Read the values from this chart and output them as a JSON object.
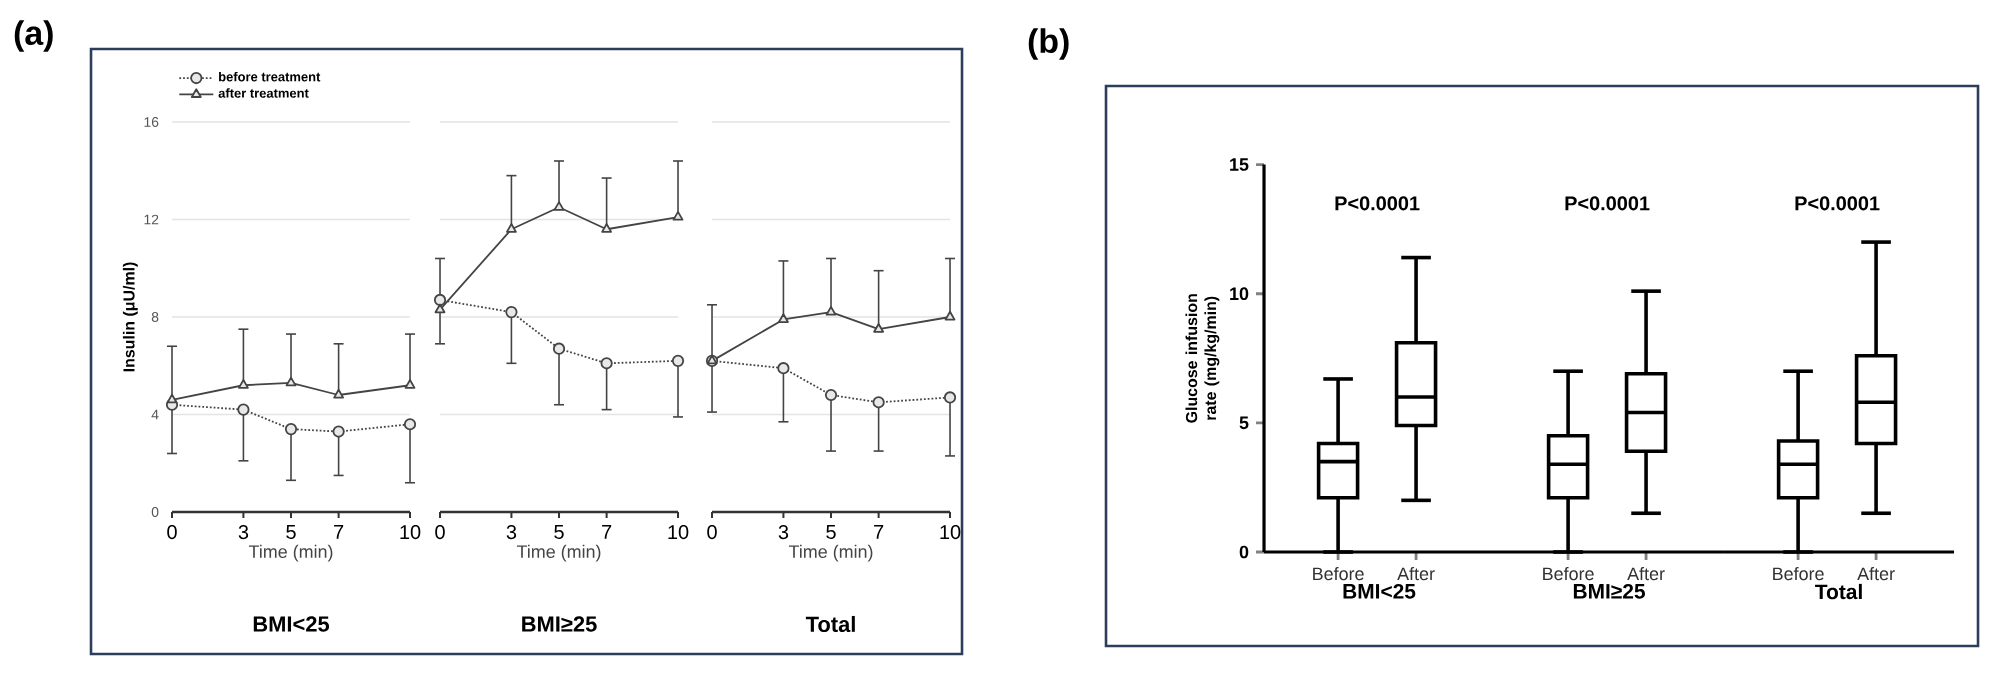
{
  "chart_data": [
    {
      "type": "line",
      "title": "(a)",
      "subtitle": "BMI<25",
      "xlabel": "Time (min)",
      "ylabel": "Insulin (μU/ml)",
      "x": [
        0,
        3,
        5,
        7,
        10
      ],
      "xlim": [
        0,
        10
      ],
      "xticks": [
        0,
        3,
        5,
        7,
        10
      ],
      "ylim": [
        0,
        16
      ],
      "yticks": [
        0,
        4,
        8,
        12,
        16
      ],
      "grid": "y",
      "legend": "top left",
      "series": [
        {
          "name": "before treatment",
          "color": "#444444",
          "marker": "circle",
          "line_style": "dotted",
          "values": [
            4.4,
            4.2,
            3.4,
            3.3,
            3.6
          ],
          "errors": [
            [
              2.4,
              4.4
            ],
            [
              2.1,
              4.2
            ],
            [
              1.3,
              3.4
            ],
            [
              1.5,
              3.3
            ],
            [
              1.2,
              3.6
            ]
          ]
        },
        {
          "name": "after treatment",
          "color": "#444444",
          "marker": "triangle",
          "line_style": "solid",
          "values": [
            4.6,
            5.2,
            5.3,
            4.8,
            5.2
          ],
          "errors": [
            [
              4.6,
              6.8
            ],
            [
              5.2,
              7.5
            ],
            [
              5.3,
              7.3
            ],
            [
              4.8,
              6.9
            ],
            [
              5.2,
              7.3
            ]
          ]
        }
      ]
    },
    {
      "type": "line",
      "subtitle": "BMI≥25",
      "xlabel": "Time (min)",
      "x": [
        0,
        3,
        5,
        7,
        10
      ],
      "xlim": [
        0,
        10
      ],
      "xticks": [
        0,
        3,
        5,
        7,
        10
      ],
      "ylim": [
        0,
        16
      ],
      "yticks": [
        0,
        4,
        8,
        12,
        16
      ],
      "grid": "y",
      "tick_labels": "x",
      "series": [
        {
          "color": "#444444",
          "marker": "circle",
          "line_style": "dotted",
          "values": [
            8.7,
            8.2,
            6.7,
            6.1,
            6.2
          ],
          "errors": [
            [
              6.9,
              8.7
            ],
            [
              6.1,
              8.2
            ],
            [
              4.4,
              6.7
            ],
            [
              4.2,
              6.1
            ],
            [
              3.9,
              6.2
            ]
          ]
        },
        {
          "color": "#444444",
          "marker": "triangle",
          "line_style": "solid",
          "values": [
            8.3,
            11.6,
            12.5,
            11.6,
            12.1
          ],
          "errors": [
            [
              8.3,
              10.4
            ],
            [
              11.6,
              13.8
            ],
            [
              12.5,
              14.4
            ],
            [
              11.6,
              13.7
            ],
            [
              12.1,
              14.4
            ]
          ]
        }
      ]
    },
    {
      "type": "line",
      "subtitle": "Total",
      "xlabel": "Time (min)",
      "x": [
        0,
        3,
        5,
        7,
        10
      ],
      "xlim": [
        0,
        10
      ],
      "xticks": [
        0,
        3,
        5,
        7,
        10
      ],
      "ylim": [
        0,
        16
      ],
      "yticks": [
        0,
        4,
        8,
        12,
        16
      ],
      "grid": "y",
      "tick_labels": "x",
      "series": [
        {
          "color": "#444444",
          "marker": "circle",
          "line_style": "dotted",
          "values": [
            6.2,
            5.9,
            4.8,
            4.5,
            4.7
          ],
          "errors": [
            [
              4.1,
              6.2
            ],
            [
              3.7,
              5.9
            ],
            [
              2.5,
              4.8
            ],
            [
              2.5,
              4.5
            ],
            [
              2.3,
              4.7
            ]
          ]
        },
        {
          "color": "#444444",
          "marker": "triangle",
          "line_style": "solid",
          "values": [
            6.2,
            7.9,
            8.2,
            7.5,
            8.0
          ],
          "errors": [
            [
              6.2,
              8.5
            ],
            [
              7.9,
              10.3
            ],
            [
              8.2,
              10.4
            ],
            [
              7.5,
              9.9
            ],
            [
              8.0,
              10.4
            ]
          ]
        }
      ]
    },
    {
      "type": "box",
      "title": "(b)",
      "xlabel": "BMI<25",
      "ylabel": "Glucose infusion rate (mg/kg/min)",
      "categories": [
        "Before",
        "After"
      ],
      "ylim": [
        0,
        15
      ],
      "yticks": [
        0,
        5,
        10,
        15
      ],
      "color": "#000000",
      "annotations": [
        "P<0.0001"
      ],
      "boxes": [
        {
          "low": 0,
          "q1": 2.1,
          "median": 3.5,
          "q3": 4.2,
          "high": 6.7
        },
        {
          "low": 2.0,
          "q1": 4.9,
          "median": 6.0,
          "q3": 8.1,
          "high": 11.4
        }
      ]
    },
    {
      "type": "box",
      "xlabel": "BMI≥25",
      "categories": [
        "Before",
        "After"
      ],
      "ylim": [
        0,
        15
      ],
      "yticks": [
        0,
        5,
        10,
        15
      ],
      "color": "#000000",
      "annotations": [
        "P<0.0001"
      ],
      "tick_labels": "x",
      "boxes": [
        {
          "low": 0,
          "q1": 2.1,
          "median": 3.4,
          "q3": 4.5,
          "high": 7.0
        },
        {
          "low": 1.5,
          "q1": 3.9,
          "median": 5.4,
          "q3": 6.9,
          "high": 10.1
        }
      ]
    },
    {
      "type": "box",
      "xlabel": "Total",
      "categories": [
        "Before",
        "After"
      ],
      "ylim": [
        0,
        15
      ],
      "yticks": [
        0,
        5,
        10,
        15
      ],
      "color": "#000000",
      "annotations": [
        "P<0.0001"
      ],
      "tick_labels": "x",
      "boxes": [
        {
          "low": 0,
          "q1": 2.1,
          "median": 3.4,
          "q3": 4.3,
          "high": 7.0
        },
        {
          "low": 1.5,
          "q1": 4.2,
          "median": 5.8,
          "q3": 7.6,
          "high": 12.0
        }
      ]
    }
  ]
}
